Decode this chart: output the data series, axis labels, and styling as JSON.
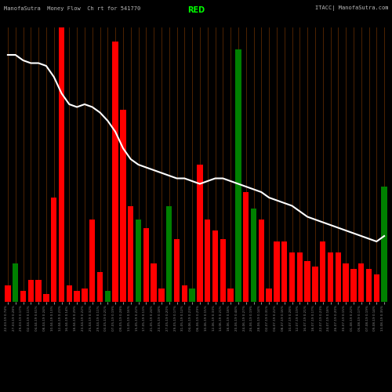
{
  "title": "ManofaSutra  Money Flow  Ch rt for 541770",
  "title_right": "ITACC| ManofaSutra.com",
  "legend_label": "RED",
  "bg_color": "#000000",
  "grid_color": "#5a2800",
  "line_color": "#ffffff",
  "bar_colors": [
    "red",
    "green",
    "red",
    "red",
    "red",
    "red",
    "red",
    "red",
    "red",
    "red",
    "red",
    "red",
    "red",
    "green",
    "red",
    "red",
    "red",
    "green",
    "red",
    "red",
    "red",
    "green",
    "red",
    "red",
    "green",
    "red",
    "red",
    "red",
    "red",
    "red",
    "green",
    "red",
    "green",
    "red",
    "red",
    "red",
    "red",
    "red",
    "red",
    "red",
    "red",
    "red",
    "red",
    "red",
    "red",
    "red",
    "red",
    "red",
    "red",
    "green"
  ],
  "bar_heights": [
    6,
    14,
    4,
    8,
    8,
    3,
    38,
    100,
    6,
    4,
    5,
    30,
    11,
    4,
    95,
    70,
    35,
    30,
    27,
    14,
    5,
    35,
    23,
    6,
    5,
    50,
    30,
    26,
    23,
    5,
    92,
    40,
    34,
    30,
    5,
    22,
    22,
    18,
    18,
    15,
    13,
    22,
    18,
    18,
    14,
    12,
    14,
    12,
    10,
    42
  ],
  "line_y": [
    90,
    90,
    88,
    87,
    87,
    86,
    82,
    76,
    72,
    71,
    72,
    71,
    69,
    66,
    62,
    56,
    52,
    50,
    49,
    48,
    47,
    46,
    45,
    45,
    44,
    43,
    44,
    45,
    45,
    44,
    43,
    42,
    41,
    40,
    38,
    37,
    36,
    35,
    33,
    31,
    30,
    29,
    28,
    27,
    26,
    25,
    24,
    23,
    22,
    24
  ],
  "n_bars": 50,
  "ylim": [
    0,
    100
  ],
  "figsize": [
    5.0,
    5.0
  ],
  "dpi": 100,
  "xtick_labels": [
    "22-03-19 0.74%",
    "27-03-19 0.28%",
    "29-03-19 0.17%",
    "02-04-19 0.11%",
    "04-04-19 0.61%",
    "08-04-19 0.24%",
    "10-04-19 0.13%",
    "12-04-19 0.23%",
    "16-04-19 0.14%",
    "18-04-19 0.29%",
    "23-04-19 0.22%",
    "25-04-19 0.32%",
    "29-04-19 0.11%",
    "03-05-19 0.21%",
    "07-05-19 0.19%",
    "09-05-19 0.28%",
    "13-05-19 0.16%",
    "15-05-19 0.22%",
    "17-05-19 0.13%",
    "21-05-19 0.24%",
    "23-05-19 0.18%",
    "27-05-19 0.20%",
    "29-05-19 0.17%",
    "31-05-19 0.12%",
    "04-06-19 0.23%",
    "06-06-19 0.29%",
    "10-06-19 0.15%",
    "12-06-19 0.33%",
    "14-06-19 0.21%",
    "18-06-19 0.18%",
    "20-06-19 0.44%",
    "24-06-19 0.27%",
    "26-06-19 0.19%",
    "28-06-19 0.14%",
    "02-07-19 0.31%",
    "04-07-19 0.22%",
    "08-07-19 0.16%",
    "10-07-19 0.28%",
    "12-07-19 0.19%",
    "16-07-19 0.21%",
    "18-07-19 0.17%",
    "22-07-19 0.23%",
    "24-07-19 0.18%",
    "26-07-19 0.20%",
    "30-07-19 0.15%",
    "01-08-19 0.22%",
    "05-08-19 0.17%",
    "07-08-19 0.19%",
    "09-08-19 0.14%",
    "13-08-19 0.35%"
  ]
}
